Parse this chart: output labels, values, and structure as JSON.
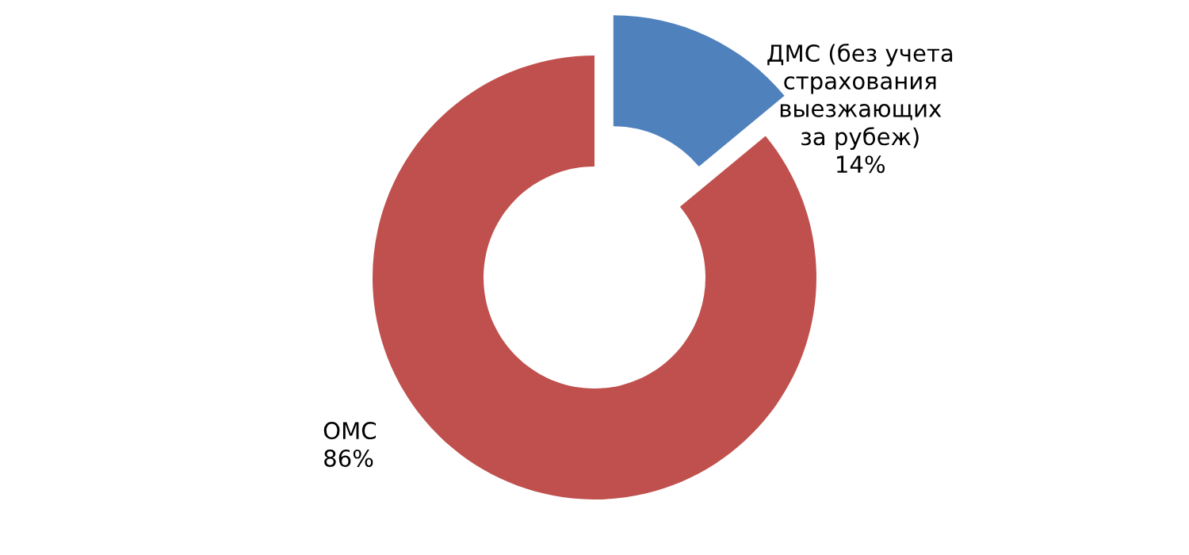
{
  "chart_data": {
    "type": "donut",
    "categories": [
      "ДМС (без учета\nстрахования\nвыезжающих\nза рубеж)",
      "ОМС"
    ],
    "values": [
      14,
      86
    ],
    "colors": [
      "#4f81bd",
      "#c0504d"
    ],
    "value_labels": [
      "14%",
      "86%"
    ],
    "legend": false
  }
}
